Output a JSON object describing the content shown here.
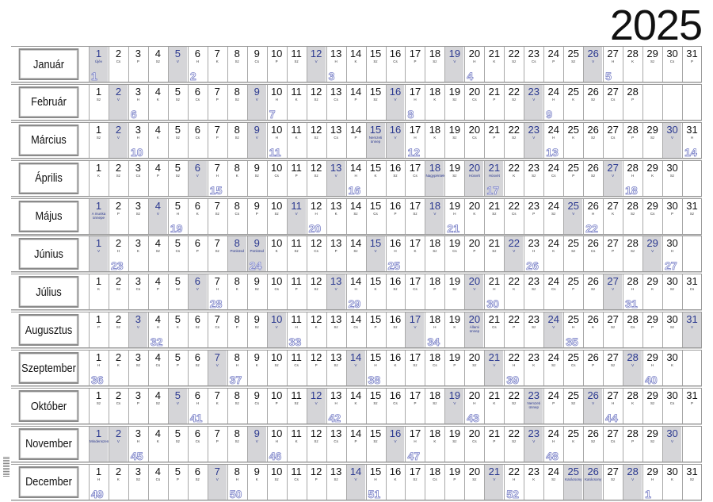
{
  "title": "2025",
  "weekday_names": [
    "H",
    "K",
    "Sz",
    "Cs",
    "P",
    "Sz",
    "V"
  ],
  "day_numbers": [
    "1",
    "2",
    "3",
    "4",
    "5",
    "6",
    "7",
    "8",
    "9",
    "10",
    "11",
    "12",
    "13",
    "14",
    "15",
    "16",
    "17",
    "18",
    "19",
    "20",
    "21",
    "22",
    "23",
    "24",
    "25",
    "26",
    "27",
    "28",
    "29",
    "30",
    "31"
  ],
  "colors": {
    "shade": "#d5d5d8",
    "sunday_text": "#2b3990",
    "week_number": "#7b82c8"
  },
  "months": [
    {
      "name": "Január",
      "days": 31,
      "first_weekday": 2,
      "holidays": {
        "1": "Újév"
      },
      "weeks": {
        "1": "1",
        "6": "2",
        "13": "3",
        "20": "4",
        "27": "5"
      }
    },
    {
      "name": "Február",
      "days": 28,
      "first_weekday": 5,
      "holidays": {},
      "weeks": {
        "3": "6",
        "10": "7",
        "17": "8",
        "24": "9"
      }
    },
    {
      "name": "Március",
      "days": 31,
      "first_weekday": 5,
      "holidays": {
        "15": "Nemzeti ünnep"
      },
      "weeks": {
        "3": "10",
        "10": "11",
        "17": "12",
        "24": "13",
        "31": "14"
      }
    },
    {
      "name": "Április",
      "days": 30,
      "first_weekday": 1,
      "holidays": {
        "18": "Nagypéntek",
        "20": "Húsvét",
        "21": "Húsvét"
      },
      "weeks": {
        "7": "15",
        "14": "16",
        "21": "17",
        "28": "18"
      }
    },
    {
      "name": "Május",
      "days": 31,
      "first_weekday": 3,
      "holidays": {
        "1": "A munka ünnepe"
      },
      "weeks": {
        "5": "19",
        "12": "20",
        "19": "21",
        "26": "22"
      }
    },
    {
      "name": "Június",
      "days": 30,
      "first_weekday": 6,
      "holidays": {
        "8": "Pünkösd",
        "9": "Pünkösd"
      },
      "weeks": {
        "2": "23",
        "9": "24",
        "16": "25",
        "23": "26",
        "30": "27"
      }
    },
    {
      "name": "Július",
      "days": 31,
      "first_weekday": 1,
      "holidays": {},
      "weeks": {
        "7": "28",
        "14": "29",
        "21": "30",
        "28": "31"
      }
    },
    {
      "name": "Augusztus",
      "days": 31,
      "first_weekday": 4,
      "holidays": {
        "20": "Állami ünnep"
      },
      "weeks": {
        "4": "32",
        "11": "33",
        "18": "34",
        "25": "35"
      }
    },
    {
      "name": "Szeptember",
      "days": 30,
      "first_weekday": 0,
      "holidays": {},
      "weeks": {
        "1": "36",
        "8": "37",
        "15": "38",
        "22": "39",
        "29": "40"
      }
    },
    {
      "name": "Október",
      "days": 31,
      "first_weekday": 2,
      "holidays": {
        "23": "Nemzeti ünnep"
      },
      "weeks": {
        "6": "41",
        "13": "42",
        "20": "43",
        "27": "44"
      }
    },
    {
      "name": "November",
      "days": 30,
      "first_weekday": 5,
      "holidays": {
        "1": "Mindenszentek"
      },
      "weeks": {
        "3": "45",
        "10": "46",
        "17": "47",
        "24": "48"
      }
    },
    {
      "name": "December",
      "days": 31,
      "first_weekday": 0,
      "holidays": {
        "25": "Karácsony",
        "26": "Karácsony"
      },
      "weeks": {
        "1": "49",
        "8": "50",
        "15": "51",
        "22": "52",
        "29": "1"
      }
    }
  ]
}
